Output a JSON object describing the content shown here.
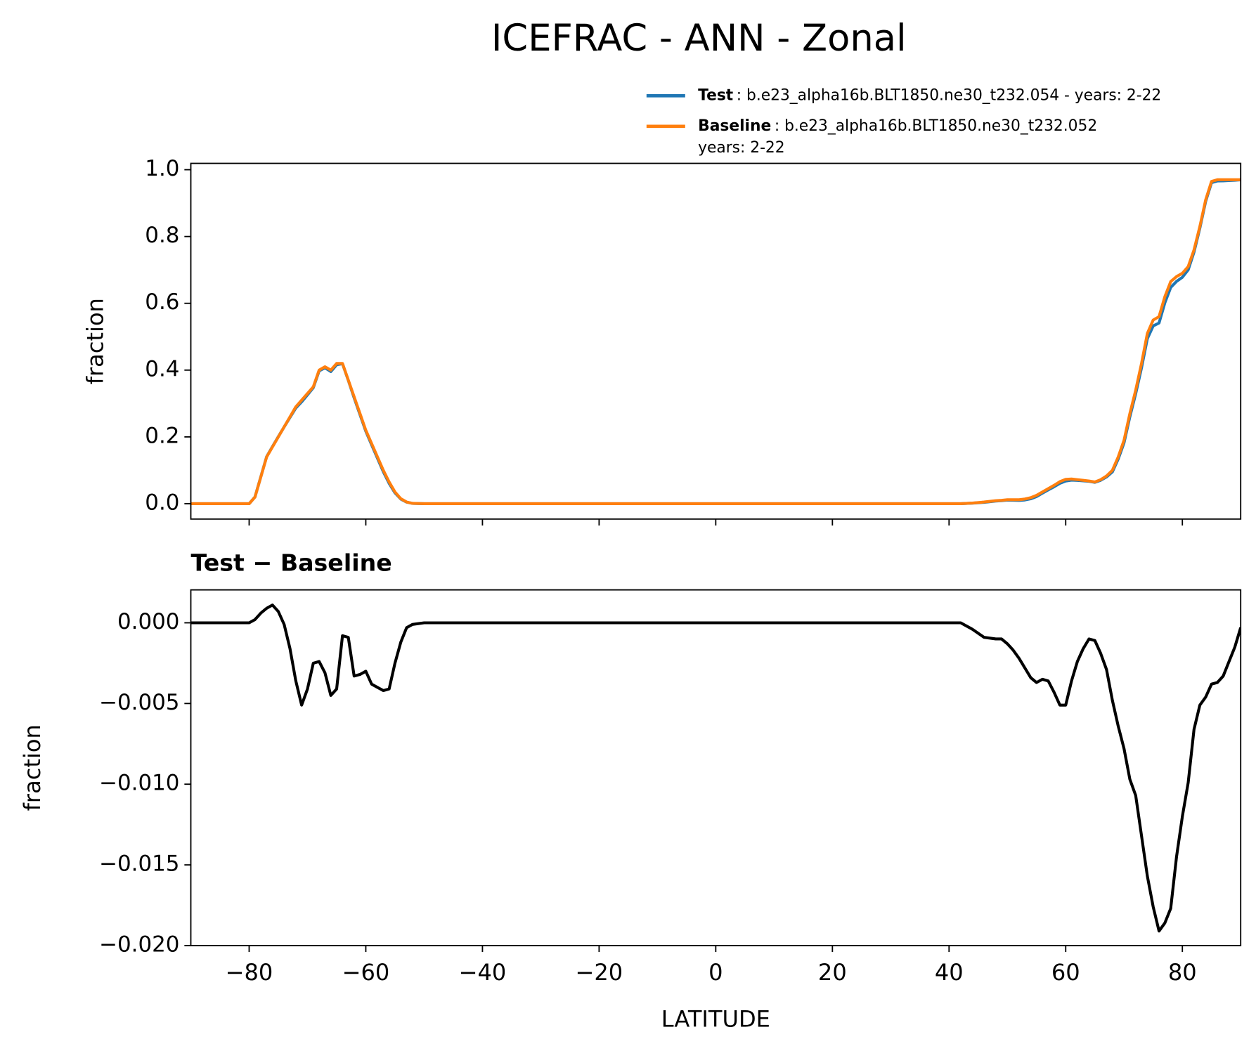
{
  "chart_data": [
    {
      "type": "line",
      "title": "ICEFRAC - ANN - Zonal",
      "ylabel": "fraction",
      "x": [
        -90,
        -85,
        -80,
        -79,
        -78,
        -77,
        -76,
        -75,
        -74,
        -73,
        -72,
        -71,
        -70,
        -69,
        -68,
        -67,
        -66,
        -65,
        -64,
        -63,
        -62,
        -61,
        -60,
        -59,
        -58,
        -57,
        -56,
        -55,
        -54,
        -53,
        -52,
        -50,
        -40,
        -30,
        -20,
        -10,
        0,
        10,
        20,
        30,
        40,
        42,
        44,
        46,
        48,
        49,
        50,
        51,
        52,
        53,
        54,
        55,
        56,
        57,
        58,
        59,
        60,
        61,
        62,
        63,
        64,
        65,
        66,
        67,
        68,
        69,
        70,
        71,
        72,
        73,
        74,
        75,
        76,
        77,
        78,
        79,
        80,
        81,
        82,
        83,
        84,
        85,
        86,
        87,
        88,
        89,
        90
      ],
      "series": [
        {
          "name": "Test",
          "description": [
            ": b.e23_alpha16b.BLT1850.ne30_t232.054 - years: 2-22"
          ],
          "color": "#1f77b4",
          "values": [
            0,
            0,
            0,
            0.0202,
            0.0806,
            0.1409,
            0.1711,
            0.2007,
            0.2299,
            0.2584,
            0.2864,
            0.3049,
            0.3259,
            0.3475,
            0.3976,
            0.4069,
            0.3955,
            0.4159,
            0.4192,
            0.3691,
            0.3167,
            0.2668,
            0.217,
            0.1762,
            0.136,
            0.0958,
            0.0609,
            0.0325,
            0.0138,
            0.0047,
            0.0009,
            0,
            0,
            0,
            0,
            0,
            0,
            0,
            0,
            0,
            0,
            0,
            0.0016,
            0.0041,
            0.008,
            0.009,
            0.0107,
            0.0103,
            0.0098,
            0.0112,
            0.0146,
            0.0213,
            0.0315,
            0.0414,
            0.0507,
            0.0609,
            0.0679,
            0.0704,
            0.0696,
            0.0684,
            0.067,
            0.0639,
            0.0701,
            0.0801,
            0.0952,
            0.1336,
            0.1822,
            0.2603,
            0.3293,
            0.4068,
            0.4943,
            0.5324,
            0.5409,
            0.6014,
            0.6473,
            0.6655,
            0.678,
            0.7001,
            0.7534,
            0.8249,
            0.9054,
            0.9612,
            0.9663,
            0.9667,
            0.9676,
            0.9685,
            0.9697
          ]
        },
        {
          "name": "Baseline",
          "description": [
            ": b.e23_alpha16b.BLT1850.ne30_t232.052",
            "years: 2-22"
          ],
          "color": "#ff7f0e",
          "values": [
            0,
            0,
            0,
            0.02,
            0.08,
            0.14,
            0.17,
            0.2,
            0.23,
            0.26,
            0.29,
            0.31,
            0.33,
            0.35,
            0.4,
            0.41,
            0.4,
            0.42,
            0.42,
            0.37,
            0.32,
            0.27,
            0.22,
            0.18,
            0.14,
            0.1,
            0.065,
            0.035,
            0.015,
            0.005,
            0.001,
            0,
            0,
            0,
            0,
            0,
            0,
            0,
            0,
            0,
            0,
            0,
            0.002,
            0.005,
            0.009,
            0.01,
            0.012,
            0.012,
            0.012,
            0.014,
            0.018,
            0.025,
            0.035,
            0.045,
            0.055,
            0.066,
            0.073,
            0.074,
            0.072,
            0.07,
            0.068,
            0.065,
            0.072,
            0.083,
            0.1,
            0.14,
            0.19,
            0.27,
            0.34,
            0.42,
            0.51,
            0.55,
            0.56,
            0.62,
            0.665,
            0.68,
            0.69,
            0.71,
            0.76,
            0.83,
            0.91,
            0.965,
            0.97,
            0.97,
            0.97,
            0.97,
            0.97
          ]
        }
      ],
      "xlim": [
        -90,
        90
      ],
      "ylim": [
        -0.046,
        1.019
      ],
      "yticks": [
        {
          "value": 0,
          "label": "0.0"
        },
        0.2,
        0.4,
        0.6,
        0.8,
        {
          "value": 1,
          "label": "1.0"
        }
      ]
    },
    {
      "type": "line",
      "title": "Test − Baseline",
      "ylabel": "fraction",
      "xlabel": "LATITUDE",
      "x": [
        -90,
        -85,
        -80,
        -79,
        -78,
        -77,
        -76,
        -75,
        -74,
        -73,
        -72,
        -71,
        -70,
        -69,
        -68,
        -67,
        -66,
        -65,
        -64,
        -63,
        -62,
        -61,
        -60,
        -59,
        -58,
        -57,
        -56,
        -55,
        -54,
        -53,
        -52,
        -50,
        -40,
        -30,
        -20,
        -10,
        0,
        10,
        20,
        30,
        40,
        42,
        44,
        46,
        48,
        49,
        50,
        51,
        52,
        53,
        54,
        55,
        56,
        57,
        58,
        59,
        60,
        61,
        62,
        63,
        64,
        65,
        66,
        67,
        68,
        69,
        70,
        71,
        72,
        73,
        74,
        75,
        76,
        77,
        78,
        79,
        80,
        81,
        82,
        83,
        84,
        85,
        86,
        87,
        88,
        89,
        90
      ],
      "series": [
        {
          "color": "#000000",
          "values": [
            0,
            0,
            0,
            0.0002,
            0.0006,
            0.0009,
            0.0011,
            0.0007,
            -0.0001,
            -0.0016,
            -0.0036,
            -0.0051,
            -0.0041,
            -0.0025,
            -0.0024,
            -0.0031,
            -0.0045,
            -0.0041,
            -0.0008,
            -0.0009,
            -0.0033,
            -0.0032,
            -0.003,
            -0.0038,
            -0.004,
            -0.0042,
            -0.0041,
            -0.0025,
            -0.0012,
            -0.0003,
            -0.0001,
            0,
            0,
            0,
            0,
            0,
            0,
            0,
            0,
            0,
            0,
            0,
            -0.0004,
            -0.0009,
            -0.001,
            -0.001,
            -0.0013,
            -0.0017,
            -0.0022,
            -0.0028,
            -0.0034,
            -0.0037,
            -0.0035,
            -0.0036,
            -0.0043,
            -0.0051,
            -0.0051,
            -0.0036,
            -0.0024,
            -0.0016,
            -0.001,
            -0.0011,
            -0.0019,
            -0.0029,
            -0.0048,
            -0.0064,
            -0.0078,
            -0.0097,
            -0.0107,
            -0.0132,
            -0.0157,
            -0.0176,
            -0.0191,
            -0.0186,
            -0.0177,
            -0.0145,
            -0.012,
            -0.0099,
            -0.0066,
            -0.0051,
            -0.0046,
            -0.0038,
            -0.0037,
            -0.0033,
            -0.0024,
            -0.0015,
            -0.0003
          ]
        }
      ],
      "xlim": [
        -90,
        90
      ],
      "ylim": [
        -0.02,
        0.00204
      ],
      "xticks": [
        {
          "value": -80,
          "label": "−80"
        },
        {
          "value": -60,
          "label": "−60"
        },
        {
          "value": -40,
          "label": "−40"
        },
        {
          "value": -20,
          "label": "−20"
        },
        0,
        20,
        40,
        60,
        80
      ],
      "yticks": [
        {
          "value": -0.02,
          "label": "−0.020"
        },
        {
          "value": -0.015,
          "label": "−0.015"
        },
        {
          "value": -0.01,
          "label": "−0.010"
        },
        {
          "value": -0.005,
          "label": "−0.005"
        },
        {
          "value": 0,
          "label": "0.000"
        }
      ]
    }
  ]
}
